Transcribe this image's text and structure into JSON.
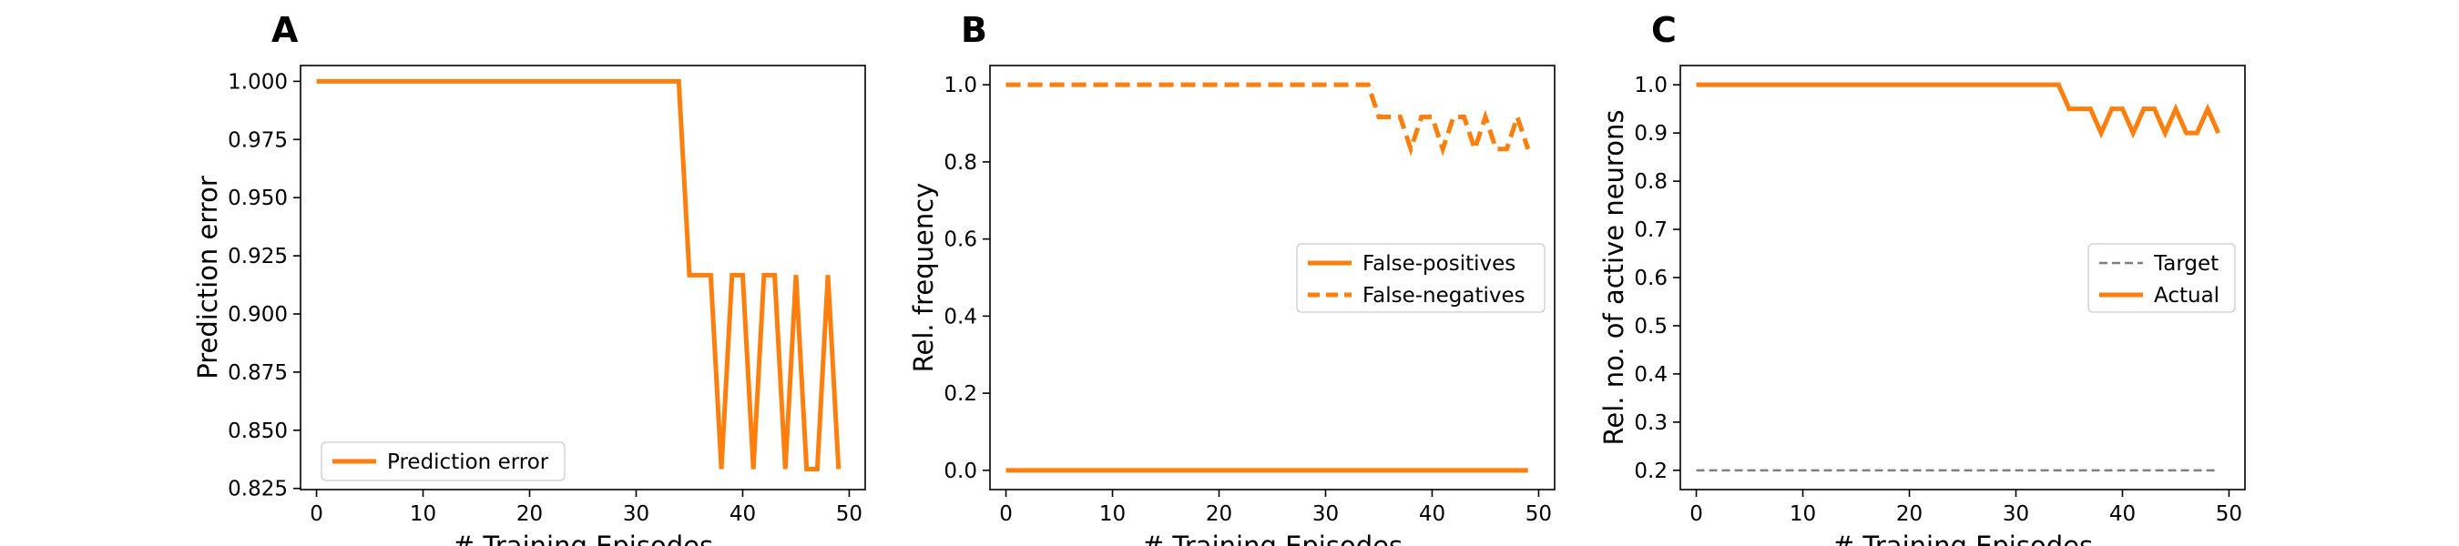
{
  "chart_data": [
    {
      "panel": "A",
      "type": "line",
      "xlabel": "# Training Episodes",
      "ylabel": "Prediction error",
      "xlim": [
        -1.5,
        51.5
      ],
      "ylim": [
        0.8245,
        1.0068
      ],
      "xticks": [
        0,
        10,
        20,
        30,
        40,
        50
      ],
      "xtick_labels": [
        "0",
        "10",
        "20",
        "30",
        "40",
        "50"
      ],
      "yticks": [
        0.825,
        0.85,
        0.875,
        0.9,
        0.925,
        0.95,
        0.975,
        1.0
      ],
      "ytick_labels": [
        "0.825",
        "0.850",
        "0.875",
        "0.900",
        "0.925",
        "0.950",
        "0.975",
        "1.000"
      ],
      "grid": false,
      "legend_position": "lower-left",
      "series": [
        {
          "name": "Prediction error",
          "color": "#ff7f0e",
          "dash": "solid",
          "x": [
            0,
            1,
            2,
            3,
            4,
            5,
            6,
            7,
            8,
            9,
            10,
            11,
            12,
            13,
            14,
            15,
            16,
            17,
            18,
            19,
            20,
            21,
            22,
            23,
            24,
            25,
            26,
            27,
            28,
            29,
            30,
            31,
            32,
            33,
            34,
            35,
            36,
            37,
            38,
            39,
            40,
            41,
            42,
            43,
            44,
            45,
            46,
            47,
            48,
            49
          ],
          "y": [
            1,
            1,
            1,
            1,
            1,
            1,
            1,
            1,
            1,
            1,
            1,
            1,
            1,
            1,
            1,
            1,
            1,
            1,
            1,
            1,
            1,
            1,
            1,
            1,
            1,
            1,
            1,
            1,
            1,
            1,
            1,
            1,
            1,
            1,
            1,
            0.9167,
            0.9167,
            0.9167,
            0.8333,
            0.9167,
            0.9167,
            0.8333,
            0.9167,
            0.9167,
            0.8333,
            0.9167,
            0.8333,
            0.8333,
            0.9167,
            0.8333
          ]
        }
      ]
    },
    {
      "panel": "B",
      "type": "line",
      "xlabel": "# Training Episodes",
      "ylabel": "Rel. frequency",
      "xlim": [
        -1.5,
        51.5
      ],
      "ylim": [
        -0.05,
        1.05
      ],
      "xticks": [
        0,
        10,
        20,
        30,
        40,
        50
      ],
      "xtick_labels": [
        "0",
        "10",
        "20",
        "30",
        "40",
        "50"
      ],
      "yticks": [
        0,
        0.2,
        0.4,
        0.6,
        0.8,
        1.0
      ],
      "ytick_labels": [
        "0.0",
        "0.2",
        "0.4",
        "0.6",
        "0.8",
        "1.0"
      ],
      "grid": false,
      "legend_position": "center-right",
      "series": [
        {
          "name": "False-positives",
          "color": "#ff7f0e",
          "dash": "solid",
          "x": [
            0,
            49
          ],
          "y": [
            0,
            0
          ]
        },
        {
          "name": "False-negatives",
          "color": "#ff7f0e",
          "dash": "dashed",
          "x": [
            0,
            1,
            2,
            3,
            4,
            5,
            6,
            7,
            8,
            9,
            10,
            11,
            12,
            13,
            14,
            15,
            16,
            17,
            18,
            19,
            20,
            21,
            22,
            23,
            24,
            25,
            26,
            27,
            28,
            29,
            30,
            31,
            32,
            33,
            34,
            35,
            36,
            37,
            38,
            39,
            40,
            41,
            42,
            43,
            44,
            45,
            46,
            47,
            48,
            49
          ],
          "y": [
            1,
            1,
            1,
            1,
            1,
            1,
            1,
            1,
            1,
            1,
            1,
            1,
            1,
            1,
            1,
            1,
            1,
            1,
            1,
            1,
            1,
            1,
            1,
            1,
            1,
            1,
            1,
            1,
            1,
            1,
            1,
            1,
            1,
            1,
            1,
            0.9167,
            0.9167,
            0.9167,
            0.8333,
            0.9167,
            0.9167,
            0.8333,
            0.9167,
            0.9167,
            0.8333,
            0.9167,
            0.8333,
            0.8333,
            0.9167,
            0.8333
          ]
        }
      ]
    },
    {
      "panel": "C",
      "type": "line",
      "xlabel": "# Training Episodes",
      "ylabel": "Rel. no. of active neurons",
      "xlim": [
        -1.5,
        51.5
      ],
      "ylim": [
        0.16,
        1.04
      ],
      "xticks": [
        0,
        10,
        20,
        30,
        40,
        50
      ],
      "xtick_labels": [
        "0",
        "10",
        "20",
        "30",
        "40",
        "50"
      ],
      "yticks": [
        0.2,
        0.3,
        0.4,
        0.5,
        0.6,
        0.7,
        0.8,
        0.9,
        1.0
      ],
      "ytick_labels": [
        "0.2",
        "0.3",
        "0.4",
        "0.5",
        "0.6",
        "0.7",
        "0.8",
        "0.9",
        "1.0"
      ],
      "grid": false,
      "legend_position": "center-right",
      "series": [
        {
          "name": "Target",
          "color": "#7f7f7f",
          "dash": "dashed",
          "x": [
            0,
            49
          ],
          "y": [
            0.2,
            0.2
          ]
        },
        {
          "name": "Actual",
          "color": "#ff7f0e",
          "dash": "solid",
          "x": [
            0,
            1,
            2,
            3,
            4,
            5,
            6,
            7,
            8,
            9,
            10,
            11,
            12,
            13,
            14,
            15,
            16,
            17,
            18,
            19,
            20,
            21,
            22,
            23,
            24,
            25,
            26,
            27,
            28,
            29,
            30,
            31,
            32,
            33,
            34,
            35,
            36,
            37,
            38,
            39,
            40,
            41,
            42,
            43,
            44,
            45,
            46,
            47,
            48,
            49
          ],
          "y": [
            1,
            1,
            1,
            1,
            1,
            1,
            1,
            1,
            1,
            1,
            1,
            1,
            1,
            1,
            1,
            1,
            1,
            1,
            1,
            1,
            1,
            1,
            1,
            1,
            1,
            1,
            1,
            1,
            1,
            1,
            1,
            1,
            1,
            1,
            1,
            0.95,
            0.95,
            0.95,
            0.9,
            0.95,
            0.95,
            0.9,
            0.95,
            0.95,
            0.9,
            0.95,
            0.9,
            0.9,
            0.95,
            0.9
          ]
        }
      ]
    }
  ]
}
